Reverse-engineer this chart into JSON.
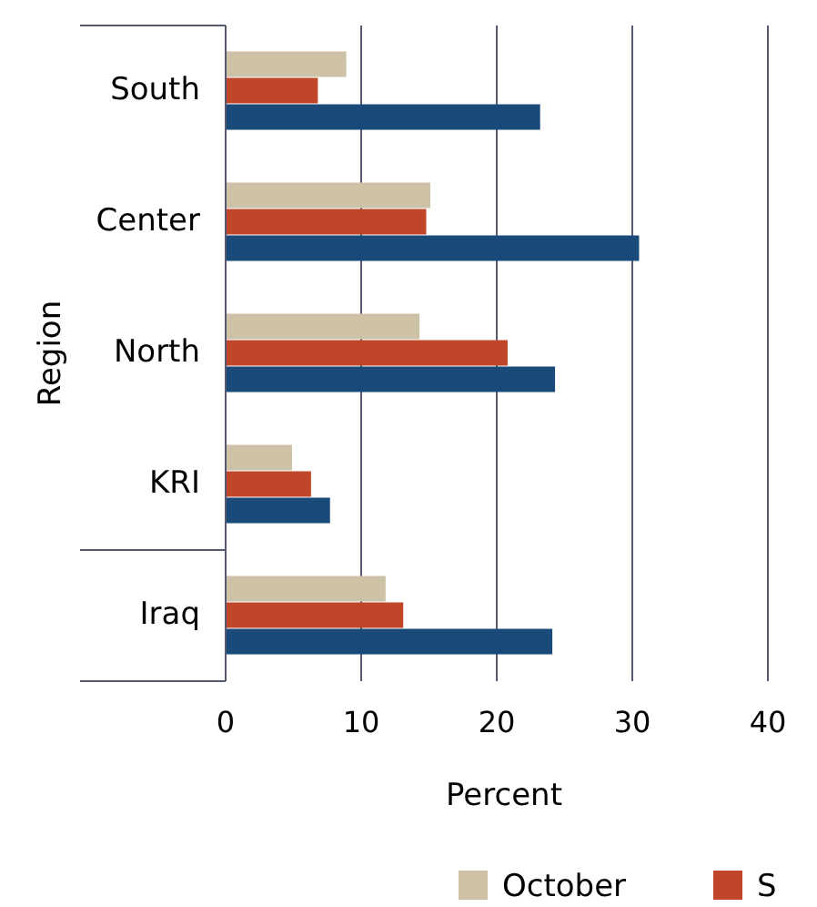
{
  "chart_data": {
    "type": "bar",
    "orientation": "horizontal",
    "xlabel": "Percent",
    "ylabel": "Region",
    "categories": [
      "South",
      "Center",
      "North",
      "KRI",
      "Iraq"
    ],
    "series": [
      {
        "name": "October",
        "color": "#cdc2a5",
        "values": [
          8.9,
          15.1,
          14.3,
          4.9,
          11.8
        ]
      },
      {
        "name": "S",
        "color": "#c0462a",
        "values": [
          6.8,
          14.8,
          20.8,
          6.3,
          13.1
        ]
      },
      {
        "color": "#1a4a7a",
        "values": [
          23.2,
          30.5,
          24.3,
          7.7,
          24.1
        ]
      }
    ],
    "xlim": [
      0,
      40
    ],
    "xticks": [
      0,
      10,
      20,
      30,
      40
    ],
    "grid": "x",
    "legend": "bottom"
  }
}
